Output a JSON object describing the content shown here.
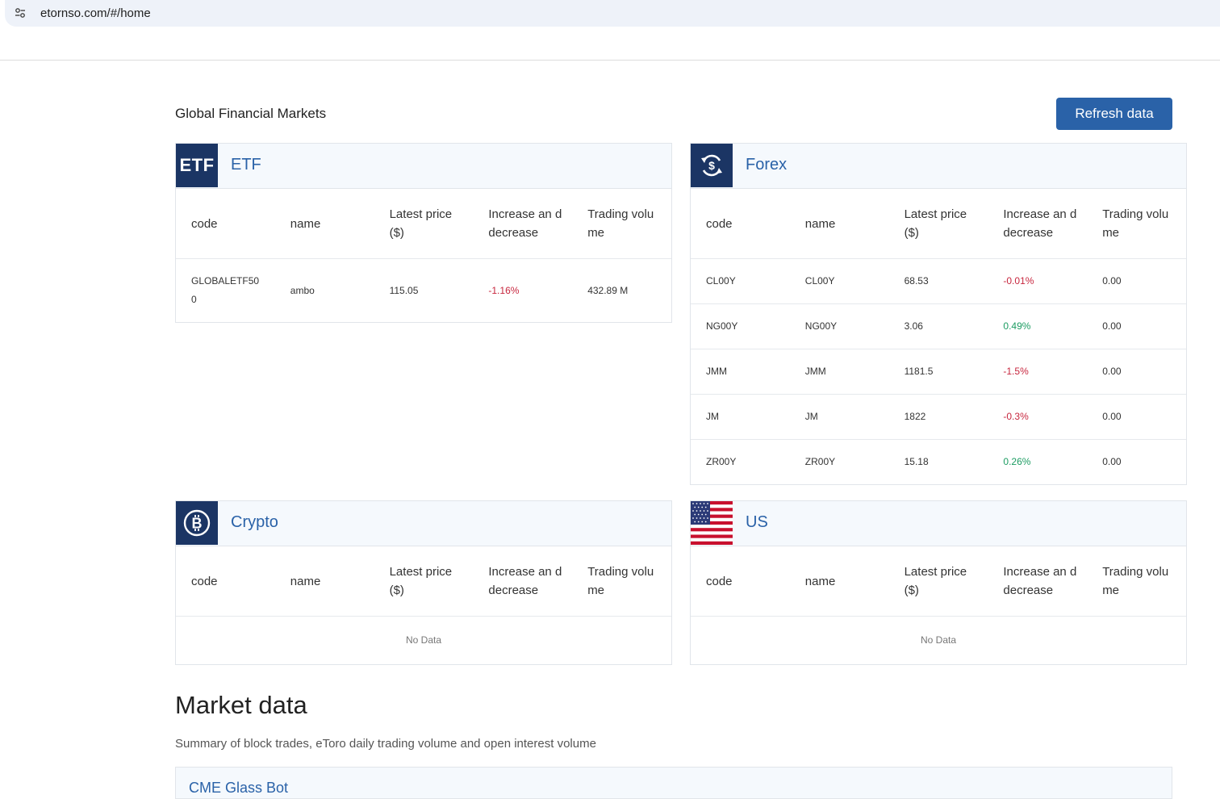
{
  "browser": {
    "url": "etornso.com/#/home"
  },
  "header": {
    "title": "Global Financial Markets",
    "refresh_label": "Refresh data"
  },
  "columns": [
    "code",
    "name",
    "Latest price ($)",
    "Increase an d decrease",
    "Trading volu me"
  ],
  "etf": {
    "icon_text": "ETF",
    "title": "ETF",
    "rows": [
      {
        "code": "GLOBALETF50 0",
        "name": "ambo",
        "price": "115.05",
        "change": "-1.16%",
        "volume": "432.89 M"
      }
    ]
  },
  "forex": {
    "title": "Forex",
    "rows": [
      {
        "code": "CL00Y",
        "name": "CL00Y",
        "price": "68.53",
        "change": "-0.01%",
        "volume": "0.00"
      },
      {
        "code": "NG00Y",
        "name": "NG00Y",
        "price": "3.06",
        "change": "0.49%",
        "volume": "0.00"
      },
      {
        "code": "JMM",
        "name": "JMM",
        "price": "1181.5",
        "change": "-1.5%",
        "volume": "0.00"
      },
      {
        "code": "JM",
        "name": "JM",
        "price": "1822",
        "change": "-0.3%",
        "volume": "0.00"
      },
      {
        "code": "ZR00Y",
        "name": "ZR00Y",
        "price": "15.18",
        "change": "0.26%",
        "volume": "0.00"
      }
    ]
  },
  "crypto": {
    "title": "Crypto",
    "empty_text": "No Data"
  },
  "us": {
    "title": "US",
    "empty_text": "No Data"
  },
  "market": {
    "title": "Market data",
    "subtitle": "Summary of block trades, eToro daily trading volume and open interest volume",
    "card_title": "CME Glass Bot"
  },
  "colors": {
    "accent": "#2a62a8",
    "icon_bg": "#1b3564",
    "negative": "#c7263e",
    "positive": "#1c9c62"
  }
}
